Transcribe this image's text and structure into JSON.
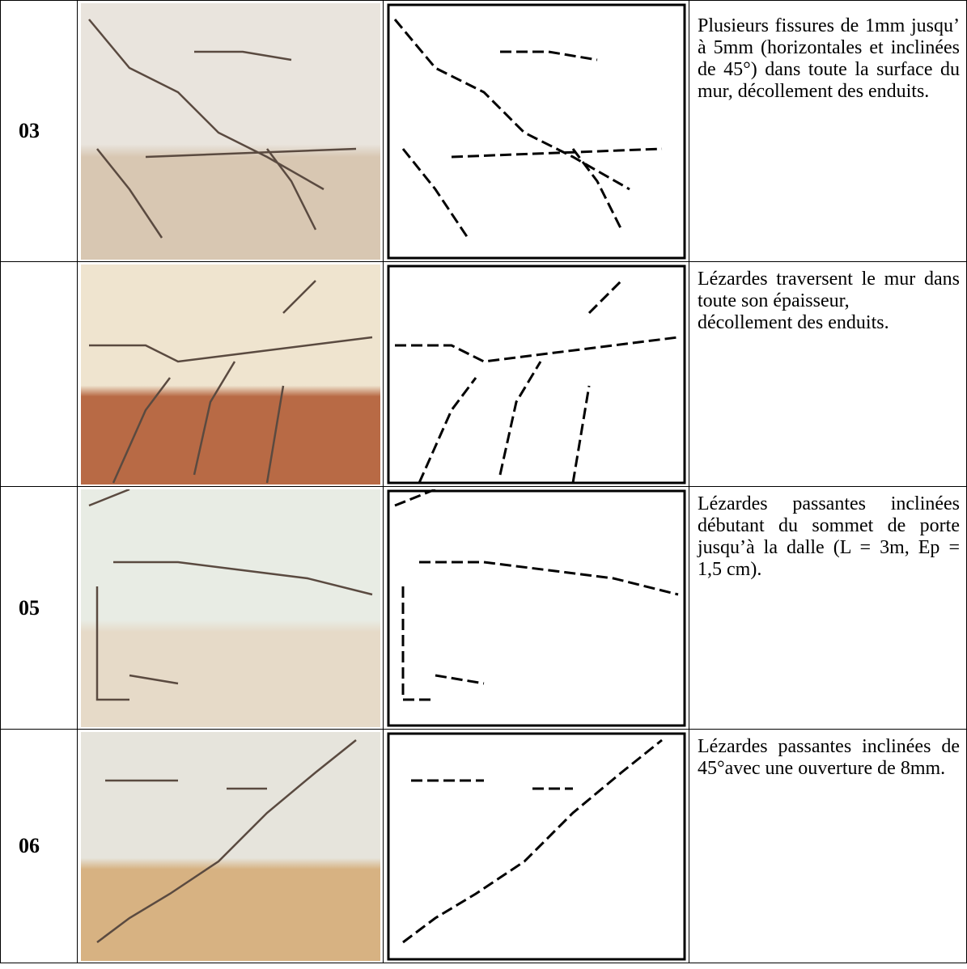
{
  "table": {
    "rows": [
      {
        "id": "03",
        "description": [
          "Plusieurs fissures de 1mm jusqu’ à 5mm (horizontales et inclinées de 45°) dans toute la surface du mur, décollement des enduits."
        ]
      },
      {
        "description": [
          "Lézardes traversent le mur dans toute son épaisseur,",
          "décollement des enduits."
        ]
      },
      {
        "id": "05",
        "description": [
          "Lézardes passantes inclinées débutant du sommet de porte jusqu’à la dalle (L = 3m, Ep = 1,5 cm)."
        ]
      },
      {
        "id": "06",
        "description": [
          "Lézardes passantes inclinées de 45°avec une ouverture de 8mm."
        ]
      }
    ]
  }
}
